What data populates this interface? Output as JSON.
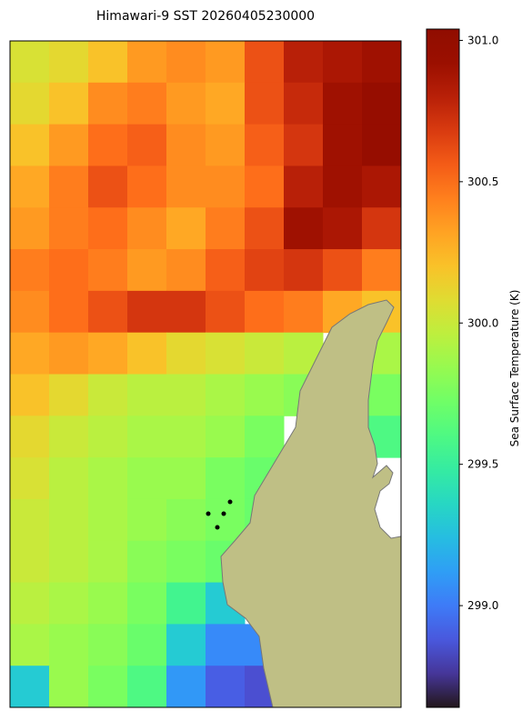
{
  "chart_data": {
    "type": "heatmap",
    "title": "Himawari-9 SST 20260405230000",
    "colorbar_label": "Sea Surface Temperature (K)",
    "clim": [
      298.64,
      301.04
    ],
    "cticks": [
      {
        "value": 299,
        "label": "299.0"
      },
      {
        "value": 299.5,
        "label": "299.5"
      },
      {
        "value": 300,
        "label": "300.0"
      },
      {
        "value": 300.5,
        "label": "300.5"
      },
      {
        "value": 301,
        "label": "301.0"
      }
    ],
    "values": [
      [
        300.05,
        300.1,
        300.2,
        300.35,
        300.4,
        300.35,
        300.6,
        300.8,
        300.85,
        300.9
      ],
      [
        300.1,
        300.2,
        300.4,
        300.45,
        300.35,
        300.3,
        300.6,
        300.75,
        300.9,
        300.95
      ],
      [
        300.2,
        300.35,
        300.5,
        300.55,
        300.4,
        300.35,
        300.55,
        300.7,
        300.9,
        300.95
      ],
      [
        300.3,
        300.45,
        300.6,
        300.5,
        300.4,
        300.4,
        300.5,
        300.8,
        300.9,
        300.85
      ],
      [
        300.35,
        300.45,
        300.5,
        300.4,
        300.3,
        300.45,
        300.6,
        300.9,
        300.85,
        300.7
      ],
      [
        300.45,
        300.5,
        300.45,
        300.35,
        300.4,
        300.55,
        300.65,
        300.7,
        300.6,
        300.45
      ],
      [
        300.4,
        300.5,
        300.6,
        300.7,
        300.7,
        300.6,
        300.5,
        300.45,
        300.3,
        300.2
      ],
      [
        300.3,
        300.35,
        300.3,
        300.2,
        300.1,
        300.05,
        300.0,
        299.95,
        null,
        299.9
      ],
      [
        300.2,
        300.1,
        300.0,
        299.95,
        299.95,
        299.9,
        299.85,
        299.8,
        null,
        299.75
      ],
      [
        300.1,
        300.0,
        299.95,
        299.9,
        299.9,
        299.85,
        299.75,
        null,
        null,
        299.6
      ],
      [
        300.05,
        299.95,
        299.9,
        299.85,
        299.85,
        299.75,
        299.7,
        null,
        null,
        null
      ],
      [
        300.0,
        299.95,
        299.9,
        299.85,
        299.8,
        299.75,
        299.7,
        null,
        null,
        null
      ],
      [
        300.0,
        299.95,
        299.9,
        299.8,
        299.75,
        299.7,
        null,
        null,
        null,
        null
      ],
      [
        299.95,
        299.9,
        299.85,
        299.75,
        299.55,
        299.3,
        null,
        null,
        null,
        null
      ],
      [
        299.9,
        299.85,
        299.8,
        299.7,
        299.3,
        299.05,
        299.05,
        null,
        null,
        null
      ],
      [
        299.3,
        299.85,
        299.75,
        299.6,
        299.1,
        298.9,
        298.85,
        null,
        null,
        null
      ]
    ]
  }
}
